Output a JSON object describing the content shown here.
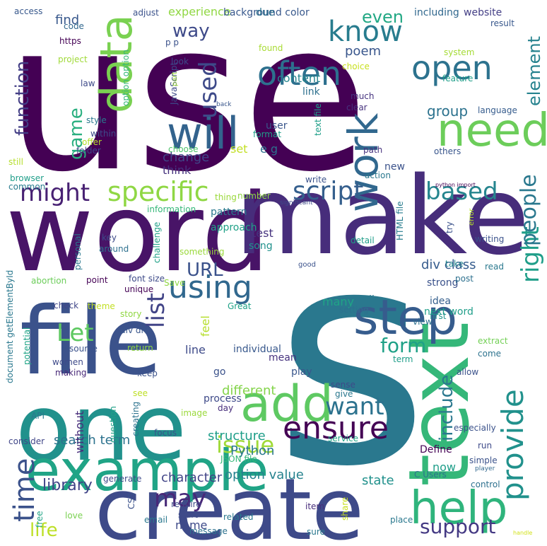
{
  "words": [
    {
      "text": "use",
      "color": "#440154"
    },
    {
      "text": "word",
      "color": "#481467"
    },
    {
      "text": "make",
      "color": "#472d7b"
    },
    {
      "text": "s",
      "color": "#2a788e"
    },
    {
      "text": "file",
      "color": "#3b528b"
    },
    {
      "text": "one",
      "color": "#21918c"
    },
    {
      "text": "create",
      "color": "#3e4a89"
    },
    {
      "text": "text",
      "color": "#35b779"
    },
    {
      "text": "example",
      "color": "#20a486"
    },
    {
      "text": "data",
      "color": "#7ad151"
    },
    {
      "text": "will",
      "color": "#33638d"
    },
    {
      "text": "need",
      "color": "#6ccd5a"
    },
    {
      "text": "work",
      "color": "#31688e"
    },
    {
      "text": "help",
      "color": "#2fb47c"
    },
    {
      "text": "step",
      "color": "#365c8d"
    },
    {
      "text": "add",
      "color": "#5ec962"
    },
    {
      "text": "open",
      "color": "#2c728e"
    },
    {
      "text": "often",
      "color": "#2d708e"
    },
    {
      "text": "know",
      "color": "#287c8e"
    },
    {
      "text": "using",
      "color": "#31688e"
    },
    {
      "text": "time",
      "color": "#3b528b"
    },
    {
      "text": "ensure",
      "color": "#440154"
    },
    {
      "text": "provide",
      "color": "#21918c"
    },
    {
      "text": "specific",
      "color": "#8fd744"
    },
    {
      "text": "might",
      "color": "#482173"
    },
    {
      "text": "script",
      "color": "#355f8d"
    },
    {
      "text": "based",
      "color": "#25858e"
    },
    {
      "text": "used",
      "color": "#3e4a89"
    },
    {
      "text": "want",
      "color": "#2c728e"
    },
    {
      "text": "list",
      "color": "#414487"
    },
    {
      "text": "Let",
      "color": "#5ec962"
    },
    {
      "text": "may",
      "color": "#482878"
    },
    {
      "text": "right",
      "color": "#1f9e89"
    },
    {
      "text": "people",
      "color": "#2a788e"
    },
    {
      "text": "issue",
      "color": "#a0da39"
    },
    {
      "text": "support",
      "color": "#443983"
    },
    {
      "text": "form",
      "color": "#1fa187"
    },
    {
      "text": "game",
      "color": "#29af7f"
    },
    {
      "text": "life",
      "color": "#bddf26"
    },
    {
      "text": "element",
      "color": "#26828e"
    },
    {
      "text": "even",
      "color": "#22a884"
    },
    {
      "text": "include",
      "color": "#2a788e"
    },
    {
      "text": "function",
      "color": "#433e85"
    },
    {
      "text": "way",
      "color": "#3e4a89"
    },
    {
      "text": "library",
      "color": "#414487"
    },
    {
      "text": "URL",
      "color": "#3b528b"
    },
    {
      "text": "poem",
      "color": "#39568c"
    },
    {
      "text": "group",
      "color": "#2c728e"
    },
    {
      "text": "search term",
      "color": "#2c728e"
    },
    {
      "text": "option value",
      "color": "#26828e"
    },
    {
      "text": "structure",
      "color": "#1f9e89"
    },
    {
      "text": "character",
      "color": "#414487"
    },
    {
      "text": "Python",
      "color": "#2a788e"
    },
    {
      "text": "different",
      "color": "#84d44b"
    },
    {
      "text": "content",
      "color": "#25858e"
    },
    {
      "text": "change",
      "color": "#404688"
    },
    {
      "text": "think",
      "color": "#46327e"
    },
    {
      "text": "div class",
      "color": "#365c8d"
    },
    {
      "text": "find",
      "color": "#38588c"
    },
    {
      "text": "experience",
      "color": "#90d743"
    },
    {
      "text": "many",
      "color": "#20a486"
    },
    {
      "text": "state",
      "color": "#21918c"
    },
    {
      "text": "name",
      "color": "#3e4a89"
    },
    {
      "text": "set",
      "color": "#c2df23"
    },
    {
      "text": "e g",
      "color": "#2d708e"
    },
    {
      "text": "user",
      "color": "#39568c"
    },
    {
      "text": "line",
      "color": "#3e4a89"
    },
    {
      "text": "now",
      "color": "#1f9e89"
    },
    {
      "text": "new",
      "color": "#3b528b"
    },
    {
      "text": "feel",
      "color": "#b5de2b"
    },
    {
      "text": "link",
      "color": "#2d708e"
    },
    {
      "text": "test",
      "color": "#46337f"
    },
    {
      "text": "song",
      "color": "#21918c"
    },
    {
      "text": "without",
      "color": "#472c7a"
    },
    {
      "text": "process",
      "color": "#3e4a89"
    },
    {
      "text": "individual",
      "color": "#38588c"
    },
    {
      "text": "Define",
      "color": "#440154"
    },
    {
      "text": "mean",
      "color": "#46327e"
    },
    {
      "text": "play",
      "color": "#39568c"
    },
    {
      "text": "go",
      "color": "#3b528b"
    },
    {
      "text": "approach",
      "color": "#1fa187"
    },
    {
      "text": "pattern",
      "color": "#2a788e"
    },
    {
      "text": "well",
      "color": "#2a788e"
    },
    {
      "text": "idea",
      "color": "#355f8d"
    },
    {
      "text": "strong",
      "color": "#3b528b"
    },
    {
      "text": "next word",
      "color": "#1f9e89"
    },
    {
      "text": "background color",
      "color": "#38588c"
    },
    {
      "text": "due",
      "color": "#2c728e"
    },
    {
      "text": "including",
      "color": "#31688e"
    },
    {
      "text": "website",
      "color": "#433e85"
    },
    {
      "text": "adjust",
      "color": "#3b528b"
    },
    {
      "text": "access",
      "color": "#38588c"
    },
    {
      "text": "code",
      "color": "#31688e"
    },
    {
      "text": "https",
      "color": "#440154"
    },
    {
      "text": "project",
      "color": "#a0da39"
    },
    {
      "text": "law",
      "color": "#3e4a89"
    },
    {
      "text": "style",
      "color": "#2a788e"
    },
    {
      "text": "within",
      "color": "#3e4a89"
    },
    {
      "text": "offer",
      "color": "#b5de2b"
    },
    {
      "text": "folder",
      "color": "#3e4a89"
    },
    {
      "text": "still",
      "color": "#b5de2b"
    },
    {
      "text": "browser",
      "color": "#1f9e89"
    },
    {
      "text": "common",
      "color": "#287c8e"
    },
    {
      "text": "information",
      "color": "#35b779"
    },
    {
      "text": "thing",
      "color": "#9bd93c"
    },
    {
      "text": "number",
      "color": "#90d743"
    },
    {
      "text": "significant",
      "color": "#3e4a89"
    },
    {
      "text": "python import",
      "color": "#440154"
    },
    {
      "text": "choose",
      "color": "#4ec36b"
    },
    {
      "text": "system",
      "color": "#a5db36"
    },
    {
      "text": "feature",
      "color": "#1f9e89"
    },
    {
      "text": "much",
      "color": "#46337f"
    },
    {
      "text": "clear",
      "color": "#46327e"
    },
    {
      "text": "language",
      "color": "#365c8d"
    },
    {
      "text": "others",
      "color": "#39568c"
    },
    {
      "text": "path",
      "color": "#46327e"
    },
    {
      "text": "action",
      "color": "#2a788e"
    },
    {
      "text": "write",
      "color": "#3b528b"
    },
    {
      "text": "result",
      "color": "#38588c"
    },
    {
      "text": "choice",
      "color": "#c8e020"
    },
    {
      "text": "found",
      "color": "#a8db34"
    },
    {
      "text": "look",
      "color": "#3e4a89"
    },
    {
      "text": "JavaScript",
      "color": "#3e4a89"
    },
    {
      "text": "part",
      "color": "#a0da39"
    },
    {
      "text": "back",
      "color": "#39568c"
    },
    {
      "text": "p p",
      "color": "#3b528b"
    },
    {
      "text": "option option",
      "color": "#35b779"
    },
    {
      "text": "text file",
      "color": "#1f9e89"
    },
    {
      "text": "format",
      "color": "#1f9e89"
    },
    {
      "text": "key",
      "color": "#3e4a89"
    },
    {
      "text": "around",
      "color": "#2d708e"
    },
    {
      "text": "challenge",
      "color": "#1fa187"
    },
    {
      "text": "something",
      "color": "#9bd93c"
    },
    {
      "text": "detail",
      "color": "#1f9e89"
    },
    {
      "text": "HTML file",
      "color": "#287c8e"
    },
    {
      "text": "try",
      "color": "#3b528b"
    },
    {
      "text": "error",
      "color": "#b5de2b"
    },
    {
      "text": "writing",
      "color": "#3b528b"
    },
    {
      "text": "read",
      "color": "#2a788e"
    },
    {
      "text": "take",
      "color": "#25858e"
    },
    {
      "text": "post",
      "color": "#2d708e"
    },
    {
      "text": "personal",
      "color": "#2a788e"
    },
    {
      "text": "abortion",
      "color": "#6ccd5a"
    },
    {
      "text": "point",
      "color": "#440154"
    },
    {
      "text": "font size",
      "color": "#3e4a89"
    },
    {
      "text": "Save",
      "color": "#90d743"
    },
    {
      "text": "unique",
      "color": "#440154"
    },
    {
      "text": "good",
      "color": "#3b528b"
    },
    {
      "text": "check",
      "color": "#404688"
    },
    {
      "text": "theme",
      "color": "#c2df23"
    },
    {
      "text": "story",
      "color": "#90d743"
    },
    {
      "text": "Great",
      "color": "#1fa187"
    },
    {
      "text": "div div",
      "color": "#39568c"
    },
    {
      "text": "return",
      "color": "#90d743"
    },
    {
      "text": "resource",
      "color": "#3b528b"
    },
    {
      "text": "women",
      "color": "#3e4a89"
    },
    {
      "text": "making",
      "color": "#482878"
    },
    {
      "text": "keep",
      "color": "#3b528b"
    },
    {
      "text": "sense",
      "color": "#3e4a89"
    },
    {
      "text": "give",
      "color": "#2a788e"
    },
    {
      "text": "day",
      "color": "#472d7b"
    },
    {
      "text": "setting",
      "color": "#2d708e"
    },
    {
      "text": "view",
      "color": "#2d708e"
    },
    {
      "text": "first",
      "color": "#21918c"
    },
    {
      "text": "extract",
      "color": "#73d056"
    },
    {
      "text": "come",
      "color": "#2c728e"
    },
    {
      "text": "term",
      "color": "#1f9e89"
    },
    {
      "text": "allow",
      "color": "#3b528b"
    },
    {
      "text": "especially",
      "color": "#3b528b"
    },
    {
      "text": "service",
      "color": "#20a486"
    },
    {
      "text": "run",
      "color": "#3e4a89"
    },
    {
      "text": "player",
      "color": "#31688e"
    },
    {
      "text": "simple",
      "color": "#3b528b"
    },
    {
      "text": "C Users",
      "color": "#2c728e"
    },
    {
      "text": "control",
      "color": "#2d708e"
    },
    {
      "text": "document getElementById",
      "color": "#2a788e"
    },
    {
      "text": "potential",
      "color": "#20a486"
    },
    {
      "text": "consider",
      "color": "#404688"
    },
    {
      "text": "API",
      "color": "#2a788e"
    },
    {
      "text": "question",
      "color": "#1fa187"
    },
    {
      "text": "creating",
      "color": "#2c728e"
    },
    {
      "text": "focus",
      "color": "#3b528b"
    },
    {
      "text": "image",
      "color": "#9bd93c"
    },
    {
      "text": "see",
      "color": "#bddf26"
    },
    {
      "text": "JSON file",
      "color": "#35b779"
    },
    {
      "text": "generate",
      "color": "#3e4a89"
    },
    {
      "text": "love",
      "color": "#7ad151"
    },
    {
      "text": "free",
      "color": "#20a486"
    },
    {
      "text": "CSS",
      "color": "#3b528b"
    },
    {
      "text": "email",
      "color": "#2a788e"
    },
    {
      "text": "require",
      "color": "#3e4a89"
    },
    {
      "text": "start",
      "color": "#3e4a89"
    },
    {
      "text": "related",
      "color": "#2a788e"
    },
    {
      "text": "message",
      "color": "#2c728e"
    },
    {
      "text": "item",
      "color": "#472d7b"
    },
    {
      "text": "share",
      "color": "#c8e020"
    },
    {
      "text": "sure",
      "color": "#2a788e"
    },
    {
      "text": "place",
      "color": "#2a788e"
    },
    {
      "text": "handle",
      "color": "#d2e21b"
    }
  ]
}
